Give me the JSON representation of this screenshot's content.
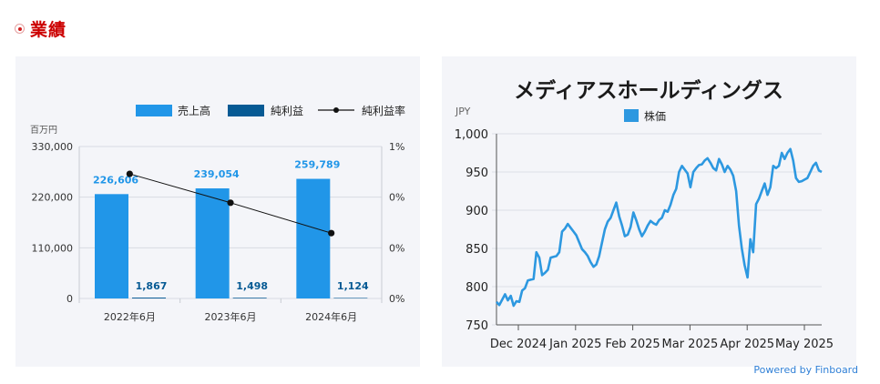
{
  "section": {
    "title": "業績"
  },
  "credit": "Powered by Finboard",
  "colors": {
    "sales": "#2196e8",
    "profit": "#065a94",
    "ratio_line": "#111111",
    "price": "#2d98e0"
  },
  "chart_data": [
    {
      "type": "bar",
      "categories": [
        "2022年6月",
        "2023年6月",
        "2024年6月"
      ],
      "series": [
        {
          "name": "売上高",
          "values": [
            226606,
            239054,
            259789
          ],
          "labels": [
            "226,606",
            "239,054",
            "259,789"
          ],
          "axis": "left"
        },
        {
          "name": "純利益",
          "values": [
            1867,
            1498,
            1124
          ],
          "labels": [
            "1,867",
            "1,498",
            "1,124"
          ],
          "axis": "left"
        },
        {
          "name": "純利益率",
          "type": "line",
          "values": [
            0.82,
            0.63,
            0.43
          ],
          "axis": "right"
        }
      ],
      "ylabel": "百万円",
      "ylim": [
        0,
        330000
      ],
      "yticks": [
        "0",
        "110,000",
        "220,000",
        "330,000"
      ],
      "y2ticks": [
        "0%",
        "0%",
        "0%",
        "1%"
      ],
      "legend_position": "top-right"
    },
    {
      "type": "line",
      "title": "メディアスホールディングス",
      "ylabel": "JPY",
      "ylim": [
        750,
        1000
      ],
      "yticks": [
        "750",
        "800",
        "850",
        "900",
        "950",
        "1,000"
      ],
      "xticks": [
        "Dec 2024",
        "Jan 2025",
        "Feb 2025",
        "Mar 2025",
        "Apr 2025",
        "May 2025"
      ],
      "legend_position": "top",
      "series": [
        {
          "name": "株価",
          "values": [
            780,
            776,
            783,
            790,
            782,
            788,
            775,
            781,
            780,
            795,
            798,
            808,
            809,
            810,
            845,
            838,
            815,
            818,
            822,
            838,
            839,
            840,
            845,
            872,
            876,
            882,
            877,
            872,
            867,
            858,
            849,
            845,
            840,
            832,
            826,
            829,
            840,
            858,
            875,
            885,
            890,
            900,
            910,
            892,
            880,
            866,
            868,
            878,
            897,
            887,
            875,
            866,
            872,
            880,
            886,
            883,
            881,
            887,
            890,
            900,
            898,
            907,
            920,
            928,
            950,
            958,
            953,
            948,
            930,
            950,
            955,
            959,
            960,
            965,
            968,
            962,
            955,
            952,
            967,
            960,
            950,
            958,
            953,
            945,
            925,
            880,
            850,
            828,
            812,
            862,
            845,
            908,
            915,
            925,
            935,
            920,
            930,
            958,
            955,
            958,
            975,
            967,
            975,
            980,
            965,
            942,
            937,
            938,
            940,
            942,
            950,
            958,
            962,
            952,
            950
          ]
        }
      ]
    }
  ]
}
